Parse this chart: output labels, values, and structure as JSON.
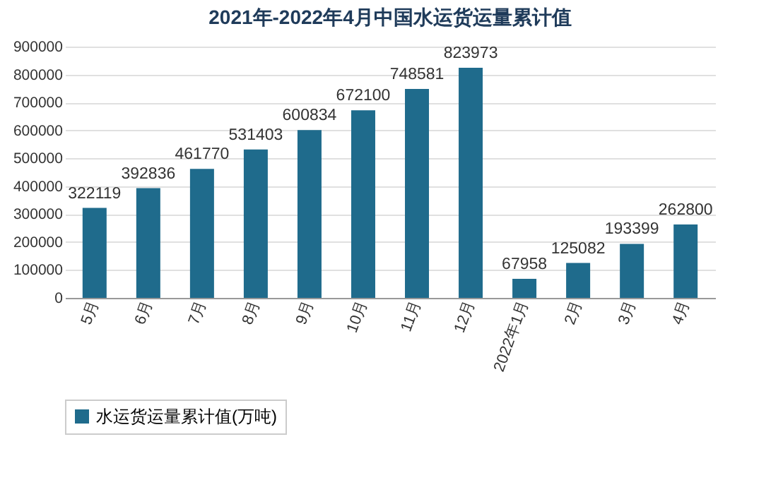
{
  "chart_data": {
    "type": "bar",
    "title": "2021年-2022年4月中国水运货运量累计值",
    "categories": [
      "5月",
      "6月",
      "7月",
      "8月",
      "9月",
      "10月",
      "11月",
      "12月",
      "2022年1月",
      "2月",
      "3月",
      "4月"
    ],
    "series": [
      {
        "name": "水运货运量累计值(万吨)",
        "color": "#1f6b8c",
        "values": [
          322119,
          392836,
          461770,
          531403,
          600834,
          672100,
          748581,
          823973,
          67958,
          125082,
          193399,
          262800
        ]
      }
    ],
    "ylim": [
      0,
      900000
    ],
    "yticks": [
      0,
      100000,
      200000,
      300000,
      400000,
      500000,
      600000,
      700000,
      800000,
      900000
    ],
    "grid": "y",
    "legend": "bottom",
    "data_labels": true
  }
}
